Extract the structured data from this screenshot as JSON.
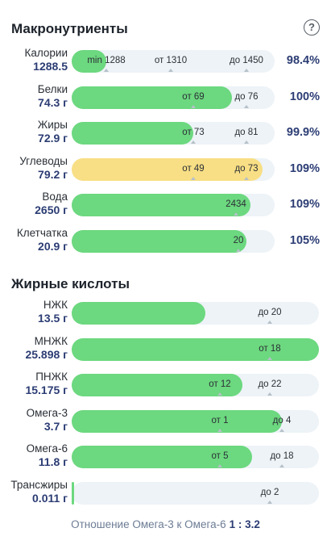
{
  "macro": {
    "title": "Макронутриенты",
    "help_icon": "question-circle-icon",
    "rows": [
      {
        "name": "Калории",
        "value": "1288.5",
        "pct": "98.4%",
        "fill": 0.17,
        "color": "green",
        "marks": [
          {
            "text": "min 1288",
            "pos": 0.17
          },
          {
            "text": "от 1310",
            "pos": 0.49
          },
          {
            "text": "до 1450",
            "pos": 0.86
          }
        ]
      },
      {
        "name": "Белки",
        "value": "74.3 г",
        "pct": "100%",
        "fill": 0.79,
        "color": "green",
        "marks": [
          {
            "text": "от 69",
            "pos": 0.6
          },
          {
            "text": "до 76",
            "pos": 0.86
          }
        ]
      },
      {
        "name": "Жиры",
        "value": "72.9 г",
        "pct": "99.9%",
        "fill": 0.6,
        "color": "green",
        "marks": [
          {
            "text": "от 73",
            "pos": 0.6
          },
          {
            "text": "до 81",
            "pos": 0.86
          }
        ]
      },
      {
        "name": "Углеводы",
        "value": "79.2 г",
        "pct": "109%",
        "fill": 0.94,
        "color": "yellow",
        "marks": [
          {
            "text": "от 49",
            "pos": 0.6
          },
          {
            "text": "до 73",
            "pos": 0.86
          }
        ]
      },
      {
        "name": "Вода",
        "value": "2650 г",
        "pct": "109%",
        "fill": 0.88,
        "color": "green",
        "marks": [
          {
            "text": "2434",
            "pos": 0.81
          }
        ]
      },
      {
        "name": "Клетчатка",
        "value": "20.9 г",
        "pct": "105%",
        "fill": 0.86,
        "color": "green",
        "marks": [
          {
            "text": "20",
            "pos": 0.82
          }
        ]
      }
    ]
  },
  "fatty": {
    "title": "Жирные кислоты",
    "rows": [
      {
        "name": "НЖК",
        "value": "13.5 г",
        "fill": 0.54,
        "color": "green",
        "marks": [
          {
            "text": "до 20",
            "pos": 0.8
          }
        ]
      },
      {
        "name": "МНЖК",
        "value": "25.898 г",
        "fill": 1.0,
        "color": "green",
        "marks": [
          {
            "text": "от 18",
            "pos": 0.8
          }
        ]
      },
      {
        "name": "ПНЖК",
        "value": "15.175 г",
        "fill": 0.69,
        "color": "green",
        "marks": [
          {
            "text": "от 12",
            "pos": 0.6
          },
          {
            "text": "до 22",
            "pos": 0.8
          }
        ]
      },
      {
        "name": "Омега-3",
        "value": "3.7 г",
        "fill": 0.85,
        "color": "green",
        "marks": [
          {
            "text": "от 1",
            "pos": 0.6
          },
          {
            "text": "до 4",
            "pos": 0.85
          }
        ]
      },
      {
        "name": "Омега-6",
        "value": "11.8 г",
        "fill": 0.73,
        "color": "green",
        "marks": [
          {
            "text": "от 5",
            "pos": 0.6
          },
          {
            "text": "до 18",
            "pos": 0.85
          }
        ]
      },
      {
        "name": "Трансжиры",
        "value": "0.011 г",
        "fill": 0.005,
        "color": "green",
        "marks": [
          {
            "text": "до 2",
            "pos": 0.8
          }
        ]
      }
    ]
  },
  "ratio": {
    "label": "Отношение Омега-3 к Омега-6",
    "value": "1 : 3.2"
  }
}
